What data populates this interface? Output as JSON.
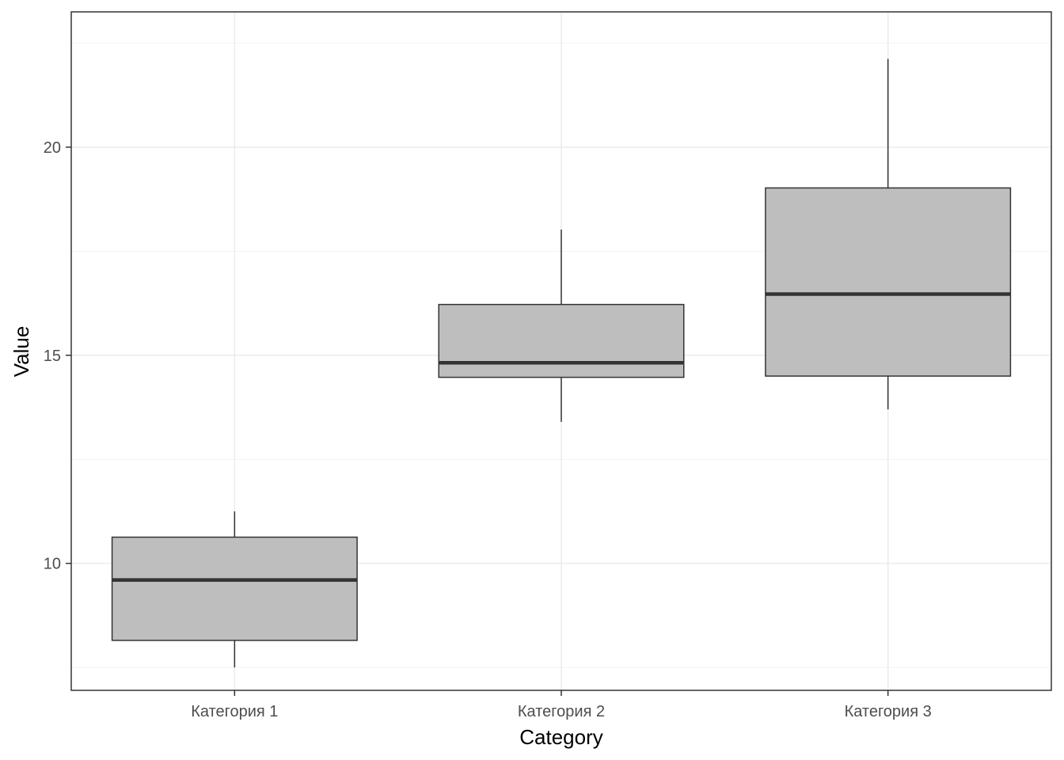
{
  "chart_data": {
    "type": "boxplot",
    "title": "",
    "xlabel": "Category",
    "ylabel": "Value",
    "categories": [
      "Категория 1",
      "Категория 2",
      "Категория 3"
    ],
    "boxes": [
      {
        "category": "Категория 1",
        "whisker_low": 7.5,
        "q1": 8.15,
        "median": 9.6,
        "q3": 10.63,
        "whisker_high": 11.25
      },
      {
        "category": "Категория 2",
        "whisker_low": 13.4,
        "q1": 14.47,
        "median": 14.82,
        "q3": 16.22,
        "whisker_high": 18.02
      },
      {
        "category": "Категория 3",
        "whisker_low": 13.7,
        "q1": 14.5,
        "median": 16.47,
        "q3": 19.02,
        "whisker_high": 22.12
      }
    ],
    "y_ticks": [
      10,
      15,
      20
    ],
    "y_tick_labels": [
      "10",
      "15",
      "20"
    ],
    "ylim": [
      6.95,
      23.25
    ],
    "grid": true,
    "legend": "none",
    "colors": {
      "box_fill": "#bebebe",
      "box_stroke": "#333333",
      "grid_major": "#ebebeb",
      "grid_minor": "#f3f3f3",
      "panel_border": "#333333"
    }
  }
}
